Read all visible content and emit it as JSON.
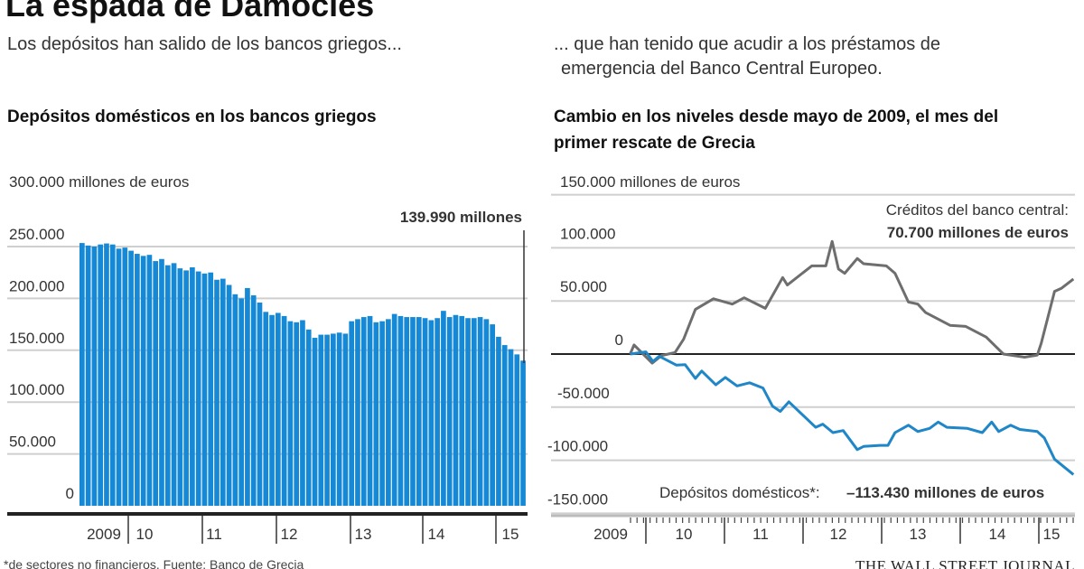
{
  "header": {
    "title": "La espada de Damocles",
    "subtitle_left": "Los depósitos han salido de los bancos griegos...",
    "subtitle_right_1": "... que han tenido que acudir a los préstamos de",
    "subtitle_right_2": "emergencia del Banco Central Europeo."
  },
  "colors": {
    "bar": "#1689d6",
    "deposits_line": "#1f86c8",
    "credits_line": "#6e6e6e",
    "grid": "#cfcfcf",
    "axis": "#222222"
  },
  "footer": {
    "footnote": "*de sectores no financieros. Fuente: Banco de Grecia",
    "source_logo": "THE WALL STREET JOURNAL"
  },
  "chart_data": [
    {
      "type": "bar",
      "title": "Depósitos domésticos en los bancos griegos",
      "ylabel": "300.000 millones de euros",
      "unit": "miles de millones de euros",
      "ylim": [
        0,
        300000
      ],
      "yticks": [
        "250.000",
        "200.000",
        "150.000",
        "100.000",
        "50.000",
        "0"
      ],
      "ytick_values": [
        250000,
        200000,
        150000,
        100000,
        50000,
        0
      ],
      "xticks": [
        "2009",
        "10",
        "11",
        "12",
        "13",
        "14",
        "15"
      ],
      "period": "mayo 2009 – mayo 2015 (mensual)",
      "values": [
        253.42,
        251,
        250,
        252,
        253,
        252,
        248,
        249,
        246,
        243,
        241,
        242,
        236,
        238,
        232,
        234,
        229,
        227,
        230,
        226,
        224,
        225,
        218,
        219,
        213,
        204,
        200,
        210,
        203,
        196,
        187,
        184,
        186,
        183,
        178,
        177,
        179,
        170,
        162,
        165,
        165,
        166,
        167,
        166,
        178,
        180,
        182,
        183,
        177,
        178,
        180,
        185,
        183,
        182,
        182,
        182,
        181,
        179,
        181,
        188,
        182,
        184,
        183,
        181,
        181,
        182,
        180,
        175,
        163,
        155,
        151,
        146,
        139.99
      ],
      "annotation": "139.990 millones",
      "grid": true
    },
    {
      "type": "line",
      "title_1": "Cambio en los niveles desde mayo de 2009, el mes del",
      "title_2": "primer rescate de Grecia",
      "ylabel": "150.000 millones de euros",
      "ylim": [
        -150000,
        150000
      ],
      "yticks": [
        "100.000",
        "50.000",
        "0",
        "-50.000",
        "-100.000",
        "-150.000"
      ],
      "ytick_values": [
        100000,
        50000,
        0,
        -50000,
        -100000,
        -150000
      ],
      "xticks": [
        "2009",
        "10",
        "11",
        "12",
        "13",
        "14",
        "15"
      ],
      "grid": true,
      "series": [
        {
          "name": "Créditos del banco central",
          "label": "Créditos del banco central:",
          "value_label": "70.700 millones de euros",
          "x": [
            2009.8,
            2009.85,
            2010.08,
            2010.2,
            2010.37,
            2010.48,
            2010.63,
            2010.86,
            2011.1,
            2011.25,
            2011.52,
            2011.74,
            2011.8,
            2012.11,
            2012.29,
            2012.37,
            2012.45,
            2012.53,
            2012.69,
            2012.77,
            2013.06,
            2013.17,
            2013.34,
            2013.46,
            2013.56,
            2013.87,
            2014.07,
            2014.33,
            2014.55,
            2014.82,
            2014.98,
            2015.03,
            2015.2,
            2015.29,
            2015.44
          ],
          "y": [
            0,
            8.6,
            -8.6,
            -1.4,
            1.4,
            14,
            42,
            52,
            47,
            53,
            43,
            72,
            65,
            83,
            83,
            106,
            80,
            76,
            90,
            85,
            83,
            76,
            49,
            47,
            39,
            27,
            26,
            16,
            0,
            -3,
            -1,
            10,
            59,
            62,
            70.7
          ]
        },
        {
          "name": "Depósitos domésticos*",
          "label": "Depósitos domésticos*:",
          "value_label": "–113.430 millones de euros",
          "x": [
            2009.8,
            2010.0,
            2010.09,
            2010.17,
            2010.39,
            2010.5,
            2010.63,
            2010.71,
            2010.89,
            2011.01,
            2011.16,
            2011.32,
            2011.49,
            2011.61,
            2011.71,
            2011.82,
            2012.16,
            2012.25,
            2012.38,
            2012.51,
            2012.69,
            2012.77,
            2012.98,
            2013.08,
            2013.17,
            2013.34,
            2013.46,
            2013.61,
            2013.72,
            2013.83,
            2014.09,
            2014.28,
            2014.4,
            2014.49,
            2014.64,
            2014.76,
            2014.98,
            2015.07,
            2015.2,
            2015.44
          ],
          "y": [
            0,
            2,
            -7,
            -2,
            -10.5,
            -10,
            -23,
            -16,
            -29,
            -22,
            -30,
            -27,
            -32,
            -49,
            -54,
            -45,
            -69,
            -66,
            -74,
            -72,
            -90,
            -87,
            -86,
            -86,
            -74,
            -67,
            -73,
            -70,
            -64,
            -69,
            -70,
            -74,
            -64,
            -73,
            -67,
            -71,
            -73,
            -79,
            -99,
            -113.43
          ]
        }
      ]
    }
  ]
}
